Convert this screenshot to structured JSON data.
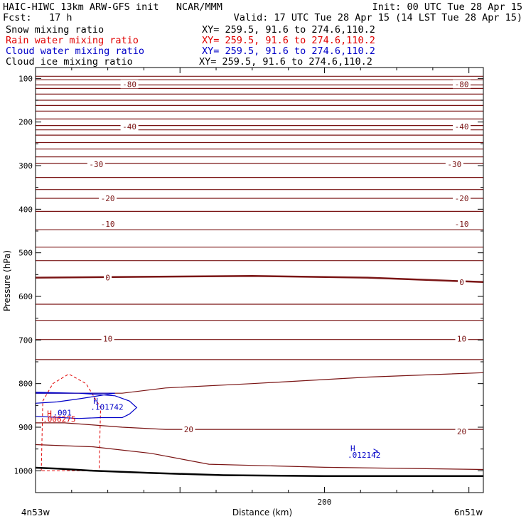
{
  "header": {
    "line1_left": "HAIC-HIWC 13km ARW-GFS init   NCAR/MMM",
    "line1_right": "Init: 00 UTC Tue 28 Apr 15",
    "line2_left": "Fcst:   17 h",
    "line2_right": "Valid: 17 UTC Tue 28 Apr 15 (14 LST Tue 28 Apr 15)"
  },
  "fields": [
    {
      "name": "Snow mixing ratio",
      "xy": "XY= 259.5, 91.6 to 274.6,110.2",
      "color": "#000000"
    },
    {
      "name": "Rain water mixing ratio",
      "xy": "XY= 259.5, 91.6 to 274.6,110.2",
      "color": "#e00000"
    },
    {
      "name": "Cloud water mixing ratio",
      "xy": "XY= 259.5, 91.6 to 274.6,110.2",
      "color": "#0000c8"
    },
    {
      "name": "Cloud ice mixing ratio",
      "xy": "XY= 259.5, 91.6 to 274.6,110.2",
      "color": "#000000"
    }
  ],
  "chart_data": {
    "type": "cross-section",
    "ylabel": "Pressure (hPa)",
    "xlabel": "Distance (km)",
    "x_left_label": "4n53w",
    "x_right_label": "6n51w",
    "x_ticks": [
      {
        "value": 200,
        "label": "200"
      }
    ],
    "y_ticks": [
      100,
      200,
      300,
      400,
      500,
      600,
      700,
      800,
      900,
      1000
    ],
    "y_tick_labels": [
      "100",
      "200",
      "300",
      "400",
      "500",
      "600",
      "700",
      "800",
      "900",
      "1000"
    ],
    "xlim": [
      0,
      310
    ],
    "ylim": [
      1050,
      75
    ],
    "colors": {
      "temperature": "#7a1414",
      "rain": "#e00000",
      "cloud": "#0000c8",
      "ground": "#000000"
    },
    "isotherm_levels_hPa": [
      95,
      103,
      115,
      123,
      136,
      150,
      162,
      175,
      193,
      208,
      218,
      230,
      247,
      262,
      280,
      295,
      327,
      355,
      375,
      405,
      447,
      487,
      518,
      557,
      618,
      655,
      699,
      745
    ],
    "isotherm_labels": [
      {
        "text": "-80",
        "x": 65,
        "p": 113
      },
      {
        "text": "-80",
        "x": 295,
        "p": 113
      },
      {
        "text": "-40",
        "x": 65,
        "p": 210
      },
      {
        "text": "-40",
        "x": 295,
        "p": 210
      },
      {
        "text": "-30",
        "x": 42,
        "p": 297
      },
      {
        "text": "-30",
        "x": 290,
        "p": 297
      },
      {
        "text": "-20",
        "x": 50,
        "p": 375
      },
      {
        "text": "-20",
        "x": 295,
        "p": 375
      },
      {
        "text": "-10",
        "x": 50,
        "p": 434
      },
      {
        "text": "-10",
        "x": 295,
        "p": 434
      },
      {
        "text": "0",
        "x": 50,
        "p": 557
      },
      {
        "text": "0",
        "x": 295,
        "p": 567
      },
      {
        "text": "10",
        "x": 50,
        "p": 697
      },
      {
        "text": "10",
        "x": 295,
        "p": 697
      },
      {
        "text": "20",
        "x": 106,
        "p": 905
      },
      {
        "text": "20",
        "x": 295,
        "p": 910
      }
    ],
    "lower_isotherms": [
      {
        "x": [
          0,
          40,
          60,
          90,
          150,
          230,
          310
        ],
        "p": [
          822,
          822,
          822,
          810,
          800,
          785,
          775
        ]
      },
      {
        "x": [
          0,
          20,
          40,
          60,
          90,
          150,
          230,
          310
        ],
        "p": [
          890,
          890,
          895,
          900,
          905,
          905,
          905,
          905
        ]
      },
      {
        "x": [
          0,
          40,
          80,
          120,
          200,
          310
        ],
        "p": [
          940,
          945,
          960,
          985,
          992,
          997
        ]
      }
    ],
    "ground": {
      "x": [
        0,
        15,
        40,
        80,
        130,
        200,
        310
      ],
      "p": [
        993,
        995,
        1000,
        1005,
        1010,
        1012,
        1012
      ]
    },
    "rain_contour": {
      "x": [
        4,
        5,
        12,
        23,
        35,
        45,
        44,
        42,
        5,
        4
      ],
      "p": [
        1000,
        840,
        800,
        778,
        800,
        855,
        1000,
        1000,
        1000,
        1000
      ]
    },
    "cloud_contour": {
      "x": [
        0,
        30,
        55,
        65,
        70,
        65,
        60,
        45,
        30,
        0,
        0,
        15,
        30,
        55,
        0
      ],
      "p": [
        820,
        822,
        828,
        840,
        855,
        870,
        878,
        878,
        880,
        875,
        845,
        842,
        835,
        822,
        822
      ]
    },
    "annotations": [
      {
        "text": "H",
        "x": 8,
        "p": 875,
        "color": "#e00000"
      },
      {
        "text": ".006275",
        "x": 5,
        "p": 888,
        "color": "#e00000"
      },
      {
        "text": "H",
        "x": 40,
        "p": 846,
        "color": "#0000c8"
      },
      {
        "text": ".101742",
        "x": 38,
        "p": 860,
        "color": "#0000c8"
      },
      {
        "text": ".001",
        "x": 12,
        "p": 873,
        "color": "#0000c8"
      },
      {
        "text": "H",
        "x": 218,
        "p": 955,
        "color": "#0000c8"
      },
      {
        "text": ".012142",
        "x": 216,
        "p": 970,
        "color": "#0000c8"
      }
    ]
  }
}
